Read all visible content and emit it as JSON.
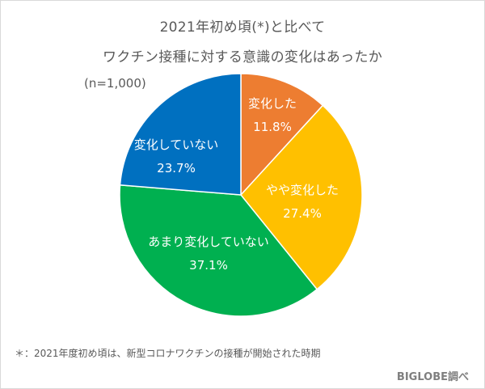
{
  "header": {
    "title_line1": "2021年初め頃(*)と比べて",
    "title_line2": "ワクチン接種に対する意識の変化はあったか",
    "sample_size": "(n=1,000)"
  },
  "slices": [
    {
      "label": "変化した",
      "value_text": "11.8%",
      "color": "#ED7D31"
    },
    {
      "label": "やや変化した",
      "value_text": "27.4%",
      "color": "#FFC000"
    },
    {
      "label": "あまり変化していない",
      "value_text": "37.1%",
      "color": "#00B050"
    },
    {
      "label": "変化していない",
      "value_text": "23.7%",
      "color": "#0070C0"
    }
  ],
  "footer": {
    "note": "＊：2021年度初め頃は、新型コロナワクチンの接種が開始された時期",
    "source": "BIGLOBE調べ"
  },
  "chart_data": {
    "type": "pie",
    "title": "2021年初め頃(*)と比べて ワクチン接種に対する意識の変化はあったか",
    "subtitle": "(n=1,000)",
    "categories": [
      "変化した",
      "やや変化した",
      "あまり変化していない",
      "変化していない"
    ],
    "values": [
      11.8,
      27.4,
      37.1,
      23.7
    ],
    "unit": "%",
    "colors": [
      "#ED7D31",
      "#FFC000",
      "#00B050",
      "#0070C0"
    ],
    "start_angle": "12 o'clock, clockwise",
    "legend": "none (labels inside slices)",
    "annotations": [
      "＊：2021年度初め頃は、新型コロナワクチンの接種が開始された時期",
      "BIGLOBE調べ"
    ]
  }
}
